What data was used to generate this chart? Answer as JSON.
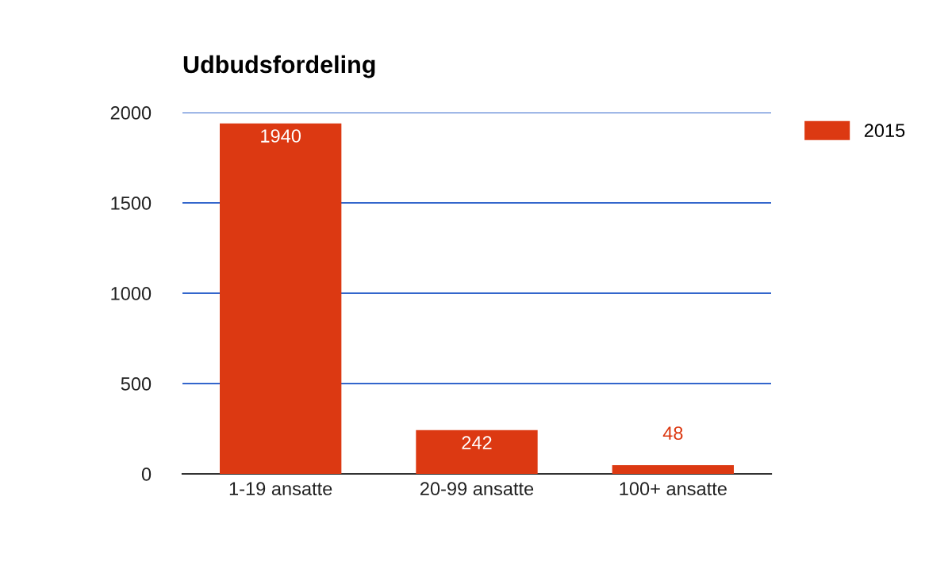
{
  "chart_data": {
    "type": "bar",
    "title": "Udbudsfordeling",
    "categories": [
      "1-19 ansatte",
      "20-99 ansatte",
      "100+ ansatte"
    ],
    "series": [
      {
        "name": "2015",
        "color": "#dc3912",
        "values": [
          1940,
          242,
          48
        ]
      }
    ],
    "ylim": [
      0,
      2000
    ],
    "yticks": [
      0,
      500,
      1000,
      1500,
      2000
    ],
    "grid": "y",
    "legend": "right",
    "data_labels": true
  }
}
